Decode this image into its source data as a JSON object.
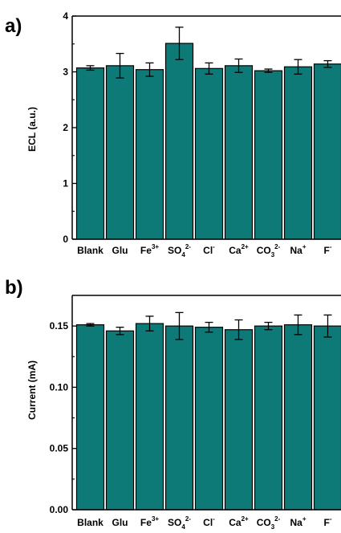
{
  "chart_data": [
    {
      "panel": "a)",
      "type": "bar",
      "categories": [
        "Blank",
        "Glu",
        "Fe3+",
        "SO42-",
        "Cl-",
        "Ca2+",
        "CO32-",
        "Na+",
        "F-"
      ],
      "category_labels": [
        {
          "base": "Blank",
          "sub": "",
          "sup": ""
        },
        {
          "base": "Glu",
          "sub": "",
          "sup": ""
        },
        {
          "base": "Fe",
          "sub": "",
          "sup": "3+"
        },
        {
          "base": "SO",
          "sub": "4",
          "sup": "2-"
        },
        {
          "base": "Cl",
          "sub": "",
          "sup": "-"
        },
        {
          "base": "Ca",
          "sub": "",
          "sup": "2+"
        },
        {
          "base": "CO",
          "sub": "3",
          "sup": "2-"
        },
        {
          "base": "Na",
          "sub": "",
          "sup": "+"
        },
        {
          "base": "F",
          "sub": "",
          "sup": "-"
        }
      ],
      "values": [
        3.07,
        3.11,
        3.04,
        3.51,
        3.06,
        3.11,
        3.02,
        3.09,
        3.14
      ],
      "errors": [
        0.04,
        0.22,
        0.12,
        0.29,
        0.1,
        0.12,
        0.03,
        0.13,
        0.06
      ],
      "ylabel": "ECL (a.u.)",
      "xlabel": "",
      "ylim": [
        0,
        4
      ],
      "yticks": [
        0,
        1,
        2,
        3,
        4
      ],
      "ytick_labels": [
        "0",
        "1",
        "2",
        "3",
        "4"
      ],
      "bar_color": "#0e7a78",
      "grid": false
    },
    {
      "panel": "b)",
      "type": "bar",
      "categories": [
        "Blank",
        "Glu",
        "Fe3+",
        "SO42-",
        "Cl-",
        "Ca2+",
        "CO32-",
        "Na+",
        "F-"
      ],
      "category_labels": [
        {
          "base": "Blank",
          "sub": "",
          "sup": ""
        },
        {
          "base": "Glu",
          "sub": "",
          "sup": ""
        },
        {
          "base": "Fe",
          "sub": "",
          "sup": "3+"
        },
        {
          "base": "SO",
          "sub": "4",
          "sup": "2-"
        },
        {
          "base": "Cl",
          "sub": "",
          "sup": "-"
        },
        {
          "base": "Ca",
          "sub": "",
          "sup": "2+"
        },
        {
          "base": "CO",
          "sub": "3",
          "sup": "2-"
        },
        {
          "base": "Na",
          "sub": "",
          "sup": "+"
        },
        {
          "base": "F",
          "sub": "",
          "sup": "-"
        }
      ],
      "values": [
        0.151,
        0.146,
        0.152,
        0.15,
        0.149,
        0.147,
        0.15,
        0.151,
        0.15
      ],
      "errors": [
        0.001,
        0.003,
        0.006,
        0.011,
        0.004,
        0.008,
        0.003,
        0.008,
        0.009
      ],
      "ylabel": "Current (mA)",
      "xlabel": "",
      "ylim": [
        0,
        0.175
      ],
      "yticks": [
        0,
        0.05,
        0.1,
        0.15
      ],
      "ytick_labels": [
        "0.00",
        "0.05",
        "0.10",
        "0.15"
      ],
      "bar_color": "#0e7a78",
      "grid": false
    }
  ]
}
